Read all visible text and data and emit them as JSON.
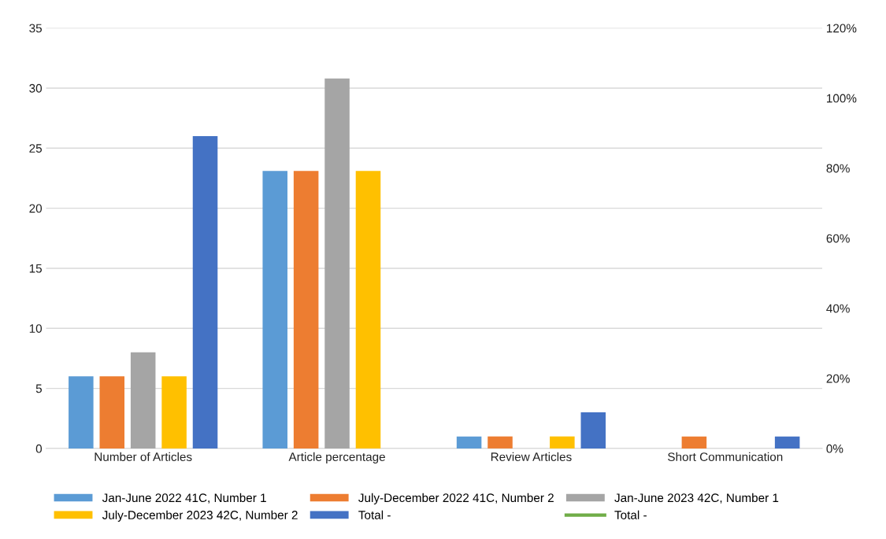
{
  "chart_data": {
    "type": "bar",
    "categories": [
      "Number of Articles",
      "Article percentage",
      "Review Articles",
      "Short Communication"
    ],
    "series": [
      {
        "name": "Jan-June 2022 41C, Number 1",
        "color": "#5b9bd5",
        "values": [
          6,
          23.1,
          1,
          null
        ]
      },
      {
        "name": "July-December 2022 41C, Number 2",
        "color": "#ed7d31",
        "values": [
          6,
          23.1,
          1,
          1
        ]
      },
      {
        "name": "Jan-June 2023 42C, Number 1",
        "color": "#a5a5a5",
        "values": [
          8,
          30.8,
          null,
          null
        ]
      },
      {
        "name": "July-December 2023 42C, Number 2",
        "color": "#ffc000",
        "values": [
          6,
          23.1,
          1,
          null
        ]
      },
      {
        "name": "Total -",
        "color": "#4472c4",
        "values": [
          26,
          null,
          3,
          1
        ]
      },
      {
        "name": "Total -",
        "color": "#70ad47",
        "type": "line",
        "values": [
          null,
          null,
          null,
          null
        ]
      }
    ],
    "ylim": [
      0,
      35
    ],
    "yticks": [
      0,
      5,
      10,
      15,
      20,
      25,
      30,
      35
    ],
    "y2lim": [
      0,
      120
    ],
    "y2ticks": [
      {
        "value": 0,
        "label": "0%"
      },
      {
        "value": 20,
        "label": "20%"
      },
      {
        "value": 40,
        "label": "40%"
      },
      {
        "value": 60,
        "label": "60%"
      },
      {
        "value": 80,
        "label": "80%"
      },
      {
        "value": 100,
        "label": "100%"
      },
      {
        "value": 120,
        "label": "120%"
      }
    ],
    "grid": "y",
    "legend": "bottom"
  }
}
